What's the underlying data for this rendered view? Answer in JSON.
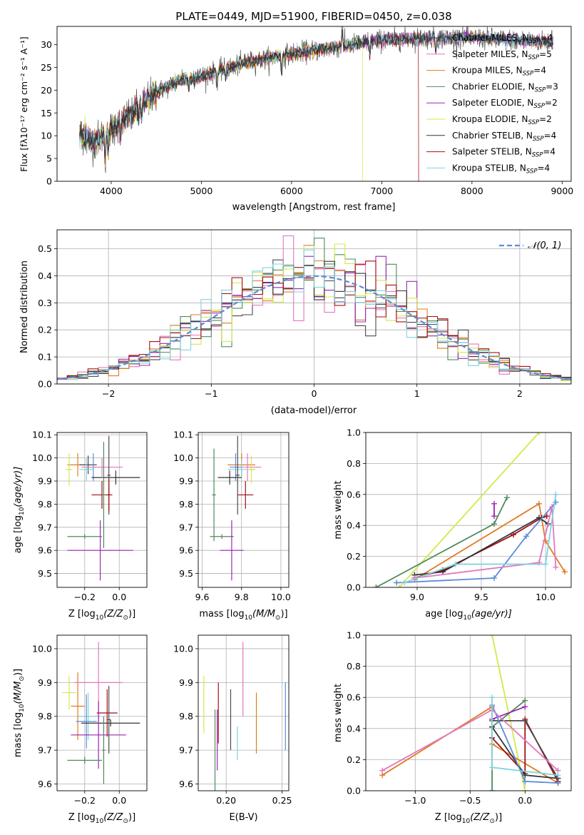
{
  "chart_data": [
    {
      "id": "spectrum",
      "type": "line",
      "title": "PLATE=0449, MJD=51900, FIBERID=0450, z=0.038",
      "xlabel": "wavelength [Angstrom, rest frame]",
      "ylabel": "Flux [fλ10⁻¹⁷ erg cm⁻² s⁻¹ A⁻¹]",
      "xlim": [
        3400,
        9100
      ],
      "ylim": [
        0,
        34
      ],
      "xticks": [
        "4000",
        "5000",
        "6000",
        "7000",
        "8000",
        "9000"
      ],
      "yticks": [
        "0",
        "5",
        "10",
        "15",
        "20",
        "25",
        "30"
      ],
      "grid": false,
      "legend_position": "top-right",
      "data_wavelength_range": [
        3650,
        8900
      ],
      "anchors_x": [
        3650,
        3800,
        4000,
        4200,
        4500,
        4800,
        5000,
        5500,
        6000,
        6500,
        7000,
        7500,
        8000,
        8500,
        8900
      ],
      "anchors_y": [
        10.5,
        8.5,
        11.5,
        14.5,
        19.5,
        22.5,
        23,
        26,
        28,
        29.5,
        31,
        31.5,
        31.5,
        31,
        30.5
      ],
      "features": [
        {
          "series": "Kroupa ELODIE",
          "dropout_at": 6790
        },
        {
          "series": "Salpeter STELIB",
          "dropout_at": 7410
        }
      ],
      "series": [
        {
          "name": "Chabrier MILES",
          "label_main": "Chabrier MILES, N",
          "label_sub": "SSP",
          "label_tail": "=4",
          "color": "#4a4a4a"
        },
        {
          "name": "Salpeter MILES",
          "label_main": "Salpeter MILES, N",
          "label_sub": "SSP",
          "label_tail": "=5",
          "color": "#e377c2"
        },
        {
          "name": "Kroupa MILES",
          "label_main": "Kroupa MILES, N",
          "label_sub": "SSP",
          "label_tail": "=4",
          "color": "#e07b22"
        },
        {
          "name": "Chabrier ELODIE",
          "label_main": "Chabrier ELODIE, N",
          "label_sub": "SSP",
          "label_tail": "=3",
          "color": "#4f8a5b"
        },
        {
          "name": "Salpeter ELODIE",
          "label_main": "Salpeter ELODIE, N",
          "label_sub": "SSP",
          "label_tail": "=2",
          "color": "#9b27b0"
        },
        {
          "name": "Kroupa ELODIE",
          "label_main": "Kroupa ELODIE, N",
          "label_sub": "SSP",
          "label_tail": "=2",
          "color": "#d4e84a"
        },
        {
          "name": "Chabrier STELIB",
          "label_main": "Chabrier STELIB, N",
          "label_sub": "SSP",
          "label_tail": "=4",
          "color": "#333333"
        },
        {
          "name": "Salpeter STELIB",
          "label_main": "Salpeter STELIB, N",
          "label_sub": "SSP",
          "label_tail": "=4",
          "color": "#a50f15"
        },
        {
          "name": "Kroupa STELIB",
          "label_main": "Kroupa STELIB, N",
          "label_sub": "SSP",
          "label_tail": "=4",
          "color": "#7fd3de"
        }
      ]
    },
    {
      "id": "residuals",
      "type": "line",
      "xlabel": "(data-model)/error",
      "ylabel": "Normed distribution",
      "xlim": [
        -2.5,
        2.5
      ],
      "ylim": [
        0,
        0.57
      ],
      "xticks": [
        "−2",
        "−1",
        "0",
        "1",
        "2"
      ],
      "yticks": [
        "0.0",
        "0.1",
        "0.2",
        "0.3",
        "0.4",
        "0.5"
      ],
      "grid": true,
      "legend_position": "top-right",
      "bin_width": 0.1,
      "normal_label": "𝒩(0, 1)",
      "normal_color": "#5b8bd9"
    },
    {
      "id": "age-vs-z",
      "type": "scatter",
      "xlabel_main": "Z [log",
      "xlabel_sub": "10",
      "xlabel_tail": "(Z/Z",
      "xlabel_sun": "⊙",
      "xlabel_end": ")]",
      "ylabel_main": "age  [log",
      "ylabel_sub": "10",
      "ylabel_tail": "(age/yr)]",
      "xlim": [
        -0.36,
        0.16
      ],
      "ylim": [
        9.44,
        10.11
      ],
      "xticks": [
        "−0.2",
        "0.0"
      ],
      "yticks": [
        "9.5",
        "9.6",
        "9.7",
        "9.8",
        "9.9",
        "10.0",
        "10.1"
      ],
      "grid": true,
      "points": [
        {
          "x": -0.24,
          "y": 9.97,
          "xerr": 0.06,
          "yerr": 0.05,
          "color": "#e07b22"
        },
        {
          "x": -0.18,
          "y": 9.97,
          "xerr": 0.05,
          "yerr": 0.04,
          "color": "#4a4a4a"
        },
        {
          "x": -0.15,
          "y": 9.96,
          "xerr": 0.04,
          "yerr": 0.06,
          "color": "#5b8bd9"
        },
        {
          "x": -0.1,
          "y": 9.96,
          "xerr": 0.12,
          "yerr": 0.04,
          "color": "#e377c2"
        },
        {
          "x": -0.29,
          "y": 9.95,
          "xerr": 0.02,
          "yerr": 0.07,
          "color": "#d4e84a"
        },
        {
          "x": -0.19,
          "y": 9.95,
          "xerr": 0.04,
          "yerr": 0.05,
          "color": "#7fd3de"
        },
        {
          "x": -0.02,
          "y": 9.915,
          "xerr": 0.14,
          "yerr": 0.03,
          "color": "#333333"
        },
        {
          "x": -0.06,
          "y": 9.925,
          "xerr": 0.01,
          "yerr": 0.17,
          "color": "#4a4a4a"
        },
        {
          "x": -0.1,
          "y": 9.84,
          "xerr": 0.06,
          "yerr": 0.06,
          "color": "#a50f15"
        },
        {
          "x": -0.06,
          "y": 9.84,
          "xerr": 0.01,
          "yerr": 0.07,
          "color": "#a50f15"
        },
        {
          "x": -0.09,
          "y": 9.84,
          "xerr": 0.01,
          "yerr": 0.23,
          "color": "#4f8a5b"
        },
        {
          "x": -0.2,
          "y": 9.66,
          "xerr": 0.1,
          "yerr": 0.01,
          "color": "#4f8a5b"
        },
        {
          "x": -0.11,
          "y": 9.6,
          "xerr": 0.19,
          "yerr": 0.13,
          "color": "#9b27b0"
        }
      ]
    },
    {
      "id": "age-vs-mass",
      "type": "scatter",
      "xlabel_main": "mass [log",
      "xlabel_sub": "10",
      "xlabel_tail": "(M/M",
      "xlabel_sun": "⊙",
      "xlabel_end": ")]",
      "xlim": [
        9.58,
        10.04
      ],
      "ylim": [
        9.44,
        10.11
      ],
      "xticks": [
        "9.6",
        "9.8",
        "10.0"
      ],
      "yticks": [
        "9.5",
        "9.6",
        "9.7",
        "9.8",
        "9.9",
        "10.0",
        "10.1"
      ],
      "grid": true,
      "points": [
        {
          "x": 9.8,
          "y": 9.97,
          "xerr": 0.07,
          "yerr": 0.05,
          "color": "#e07b22"
        },
        {
          "x": 9.83,
          "y": 9.96,
          "xerr": 0.07,
          "yerr": 0.06,
          "color": "#e377c2"
        },
        {
          "x": 9.77,
          "y": 9.96,
          "xerr": 0.03,
          "yerr": 0.06,
          "color": "#5b8bd9"
        },
        {
          "x": 9.8,
          "y": 9.95,
          "xerr": 0.07,
          "yerr": 0.04,
          "color": "#7fd3de"
        },
        {
          "x": 9.85,
          "y": 9.95,
          "xerr": 0.02,
          "yerr": 0.06,
          "color": "#d4e84a"
        },
        {
          "x": 9.74,
          "y": 9.915,
          "xerr": 0.06,
          "yerr": 0.03,
          "color": "#333333"
        },
        {
          "x": 9.78,
          "y": 9.925,
          "xerr": 0.01,
          "yerr": 0.17,
          "color": "#4a4a4a"
        },
        {
          "x": 9.82,
          "y": 9.84,
          "xerr": 0.04,
          "yerr": 0.06,
          "color": "#a50f15"
        },
        {
          "x": 9.66,
          "y": 9.84,
          "xerr": 0.01,
          "yerr": 0.2,
          "color": "#4f8a5b"
        },
        {
          "x": 9.7,
          "y": 9.66,
          "xerr": 0.06,
          "yerr": 0.01,
          "color": "#4f8a5b"
        },
        {
          "x": 9.75,
          "y": 9.6,
          "xerr": 0.06,
          "yerr": 0.13,
          "color": "#9b27b0"
        }
      ]
    },
    {
      "id": "massweight-vs-age",
      "type": "line",
      "xlabel_main": "age  [log",
      "xlabel_sub": "10",
      "xlabel_tail": "(age/yr)]",
      "ylabel": "mass weight",
      "xlim": [
        8.6,
        10.2
      ],
      "ylim": [
        0,
        1
      ],
      "xticks": [
        "9.0",
        "9.5",
        "10.0"
      ],
      "yticks": [
        "0.0",
        "0.2",
        "0.4",
        "0.6",
        "0.8",
        "1.0"
      ],
      "grid": true,
      "series": [
        {
          "color": "#d4e84a",
          "x": [
            8.86,
            9.95
          ],
          "y": [
            0.0,
            1.0
          ]
        },
        {
          "color": "#4f8a5b",
          "x": [
            8.68,
            9.6,
            9.7
          ],
          "y": [
            0.0,
            0.41,
            0.58
          ]
        },
        {
          "color": "#9b27b0",
          "x": [
            9.6,
            9.6
          ],
          "y": [
            0.46,
            0.54
          ]
        },
        {
          "color": "#e07b22",
          "x": [
            8.98,
            9.95,
            10.0,
            10.15
          ],
          "y": [
            0.05,
            0.54,
            0.3,
            0.1
          ]
        },
        {
          "color": "#a50f15",
          "x": [
            8.98,
            9.2,
            9.75,
            9.97,
            10.01
          ],
          "y": [
            0.06,
            0.11,
            0.34,
            0.45,
            0.46
          ]
        },
        {
          "color": "#333333",
          "x": [
            8.98,
            9.2,
            9.95,
            10.02
          ],
          "y": [
            0.08,
            0.1,
            0.45,
            0.41
          ]
        },
        {
          "color": "#5b8bd9",
          "x": [
            8.84,
            9.6,
            9.85,
            10.08
          ],
          "y": [
            0.03,
            0.06,
            0.33,
            0.55
          ]
        },
        {
          "color": "#e377c2",
          "x": [
            8.98,
            9.95,
            10.05,
            10.08
          ],
          "y": [
            0.06,
            0.16,
            0.52,
            0.13
          ]
        },
        {
          "color": "#7fd3de",
          "x": [
            8.9,
            9.3,
            10.0,
            10.08
          ],
          "y": [
            0.03,
            0.15,
            0.15,
            0.6
          ]
        }
      ]
    },
    {
      "id": "mass-vs-z",
      "type": "scatter",
      "xlabel_main": "Z [log",
      "xlabel_sub": "10",
      "xlabel_tail": "(Z/Z",
      "xlabel_sun": "⊙",
      "xlabel_end": ")]",
      "ylabel_main": "mass [log",
      "ylabel_sub": "10",
      "ylabel_tail": "(M/M",
      "ylabel_sun": "⊙",
      "ylabel_end": ")]",
      "xlim": [
        -0.36,
        0.16
      ],
      "ylim": [
        9.58,
        10.04
      ],
      "xticks": [
        "−0.2",
        "0.0"
      ],
      "yticks": [
        "9.6",
        "9.7",
        "9.8",
        "9.9",
        "10.0"
      ],
      "grid": true,
      "points": [
        {
          "x": -0.29,
          "y": 9.87,
          "xerr": 0.04,
          "yerr": 0.05,
          "color": "#d4e84a"
        },
        {
          "x": -0.24,
          "y": 9.83,
          "xerr": 0.04,
          "yerr": 0.1,
          "color": "#e07b22"
        },
        {
          "x": -0.12,
          "y": 9.9,
          "xerr": 0.14,
          "yerr": 0.12,
          "color": "#e377c2"
        },
        {
          "x": -0.07,
          "y": 9.81,
          "xerr": 0.06,
          "yerr": 0.07,
          "color": "#a50f15"
        },
        {
          "x": -0.18,
          "y": 9.8,
          "xerr": 0.06,
          "yerr": 0.07,
          "color": "#7fd3de"
        },
        {
          "x": -0.19,
          "y": 9.785,
          "xerr": 0.06,
          "yerr": 0.08,
          "color": "#5b8bd9"
        },
        {
          "x": -0.05,
          "y": 9.78,
          "xerr": 0.17,
          "yerr": 0.01,
          "color": "#333333"
        },
        {
          "x": -0.06,
          "y": 9.79,
          "xerr": 0.01,
          "yerr": 0.1,
          "color": "#4a4a4a"
        },
        {
          "x": -0.12,
          "y": 9.745,
          "xerr": 0.16,
          "yerr": 0.1,
          "color": "#9b27b0"
        },
        {
          "x": -0.2,
          "y": 9.67,
          "xerr": 0.1,
          "yerr": 0.01,
          "color": "#4f8a5b"
        },
        {
          "x": -0.09,
          "y": 9.7,
          "xerr": 0.01,
          "yerr": 0.1,
          "color": "#4f8a5b"
        }
      ]
    },
    {
      "id": "mass-vs-ebv",
      "type": "scatter",
      "xlabel": "E(B-V)",
      "xlim": [
        0.175,
        0.256
      ],
      "ylim": [
        9.58,
        10.04
      ],
      "xticks": [
        "0.20",
        "0.25"
      ],
      "yticks": [
        "9.6",
        "9.7",
        "9.8",
        "9.9",
        "10.0"
      ],
      "grid": true,
      "points": [
        {
          "x": 0.18,
          "y": 9.835,
          "xerr": 0.0,
          "yerr": 0.085,
          "color": "#d4e84a"
        },
        {
          "x": 0.19,
          "y": 9.7,
          "xerr": 0.0,
          "yerr": 0.12,
          "color": "#4f8a5b"
        },
        {
          "x": 0.192,
          "y": 9.73,
          "xerr": 0.0,
          "yerr": 0.09,
          "color": "#9b27b0"
        },
        {
          "x": 0.193,
          "y": 9.81,
          "xerr": 0.0,
          "yerr": 0.09,
          "color": "#a50f15"
        },
        {
          "x": 0.204,
          "y": 9.79,
          "xerr": 0.0,
          "yerr": 0.09,
          "color": "#4a4a4a"
        },
        {
          "x": 0.21,
          "y": 9.72,
          "xerr": 0.0,
          "yerr": 0.05,
          "color": "#7fd3de"
        },
        {
          "x": 0.215,
          "y": 9.91,
          "xerr": 0.0,
          "yerr": 0.11,
          "color": "#e377c2"
        },
        {
          "x": 0.227,
          "y": 9.78,
          "xerr": 0.0,
          "yerr": 0.09,
          "color": "#e07b22"
        },
        {
          "x": 0.253,
          "y": 9.8,
          "xerr": 0.0,
          "yerr": 0.1,
          "color": "#5b8bd9"
        }
      ]
    },
    {
      "id": "massweight-vs-z",
      "type": "line",
      "xlabel_main": "Z [log",
      "xlabel_sub": "10",
      "xlabel_tail": "(Z/Z",
      "xlabel_sun": "⊙",
      "xlabel_end": ")]",
      "ylabel": "mass weight",
      "xlim": [
        -1.45,
        0.42
      ],
      "ylim": [
        0,
        1
      ],
      "xticks": [
        "−1.0",
        "−0.5",
        "0.0"
      ],
      "yticks": [
        "0.0",
        "0.2",
        "0.4",
        "0.6",
        "0.8",
        "1.0"
      ],
      "grid": true,
      "series": [
        {
          "color": "#d4e84a",
          "x": [
            -0.3,
            0.0
          ],
          "y": [
            1.0,
            0.0
          ]
        },
        {
          "color": "#4f8a5b",
          "x": [
            -0.3,
            -0.3,
            0.0
          ],
          "y": [
            0.0,
            0.41,
            0.58
          ]
        },
        {
          "color": "#9b27b0",
          "x": [
            -0.3,
            0.0
          ],
          "y": [
            0.46,
            0.54
          ]
        },
        {
          "color": "#e07b22",
          "x": [
            -1.3,
            -0.3,
            -0.3,
            0.3
          ],
          "y": [
            0.1,
            0.54,
            0.3,
            0.05
          ]
        },
        {
          "color": "#a50f15",
          "x": [
            -0.3,
            0.0,
            0.0,
            0.3
          ],
          "y": [
            0.34,
            0.11,
            0.46,
            0.06
          ]
        },
        {
          "color": "#333333",
          "x": [
            -0.3,
            0.0,
            0.3
          ],
          "y": [
            0.41,
            0.1,
            0.08
          ]
        },
        {
          "color": "#4a4a4a",
          "x": [
            -0.3,
            0.0,
            0.3
          ],
          "y": [
            0.45,
            0.45,
            0.08
          ]
        },
        {
          "color": "#5b8bd9",
          "x": [
            -0.3,
            0.0,
            0.3
          ],
          "y": [
            0.55,
            0.06,
            0.05
          ]
        },
        {
          "color": "#e377c2",
          "x": [
            -1.3,
            -0.3,
            0.3
          ],
          "y": [
            0.13,
            0.52,
            0.13
          ]
        },
        {
          "color": "#7fd3de",
          "x": [
            -0.3,
            -0.3,
            0.3
          ],
          "y": [
            0.6,
            0.15,
            0.1
          ]
        }
      ]
    }
  ]
}
